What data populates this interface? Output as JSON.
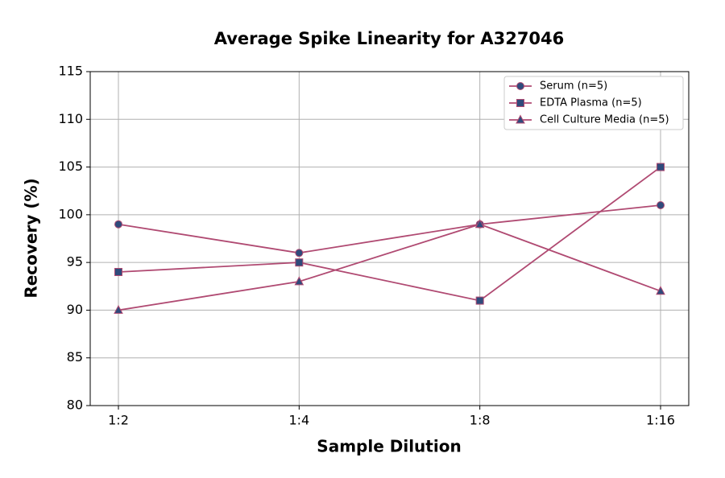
{
  "chart_data": {
    "type": "line",
    "title": "Average Spike Linearity for A327046",
    "x_label": "Sample Dilution",
    "y_label": "Recovery (%)",
    "categories": [
      "1:2",
      "1:4",
      "1:8",
      "1:16"
    ],
    "series": [
      {
        "name": "Serum (n=5)",
        "color": "#b04a72",
        "marker": "circle",
        "marker_color": "#2f4b7c",
        "values": [
          99,
          96,
          99,
          101
        ]
      },
      {
        "name": "EDTA Plasma (n=5)",
        "color": "#b04a72",
        "marker": "square",
        "marker_color": "#2f4b7c",
        "values": [
          94,
          95,
          91,
          105
        ]
      },
      {
        "name": "Cell Culture Media (n=5)",
        "color": "#b04a72",
        "marker": "triangle",
        "marker_color": "#2f4b7c",
        "values": [
          90,
          93,
          99,
          92
        ]
      }
    ],
    "ylim": [
      80,
      115
    ],
    "yticks": [
      80,
      85,
      90,
      95,
      100,
      105,
      110,
      115
    ],
    "grid": true,
    "legend": "upper right"
  }
}
